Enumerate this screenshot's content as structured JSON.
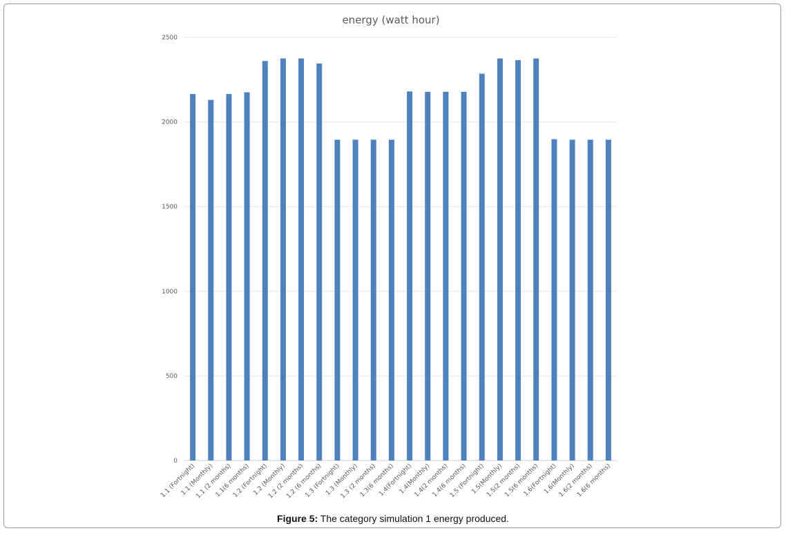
{
  "chart_data": {
    "type": "bar",
    "title": "energy (watt hour)",
    "xlabel": "",
    "ylabel": "",
    "ylim": [
      0,
      2500
    ],
    "yticks": [
      0,
      500,
      1000,
      1500,
      2000,
      2500
    ],
    "grid": true,
    "legend": "none",
    "bar_color": "#4f81bd",
    "categories": [
      "1.1 (Fortnight)",
      "1.1 (Monthly)",
      "1.1 (2 months)",
      "1.1(6 months)",
      "1.2 (Fortnight)",
      "1.2 (Monthly)",
      "1.2 (2 months)",
      "1.2 (6 months)",
      "1.3 (Fortnight)",
      "1.3 (Monthly)",
      "1.3 (2 months)",
      "1.3(6 months)",
      "1.4(Fortnight)",
      "1.4(Monthly)",
      "1.4(2 months)",
      "1.4(6 months)",
      "1.5 (Fortnight)",
      "1.5(Monthly)",
      "1.5(2 months)",
      "1.5(6 months)",
      "1.6(Fortnight)",
      "1.6(Monthly)",
      "1.6(2 months)",
      "1.6(6 months)"
    ],
    "values": [
      2165,
      2130,
      2165,
      2175,
      2360,
      2375,
      2375,
      2345,
      1895,
      1895,
      1895,
      1895,
      2180,
      2178,
      2178,
      2178,
      2285,
      2375,
      2365,
      2375,
      1898,
      1895,
      1895,
      1895
    ]
  },
  "caption": {
    "label": "Figure 5:",
    "text": " The category simulation 1 energy produced."
  }
}
